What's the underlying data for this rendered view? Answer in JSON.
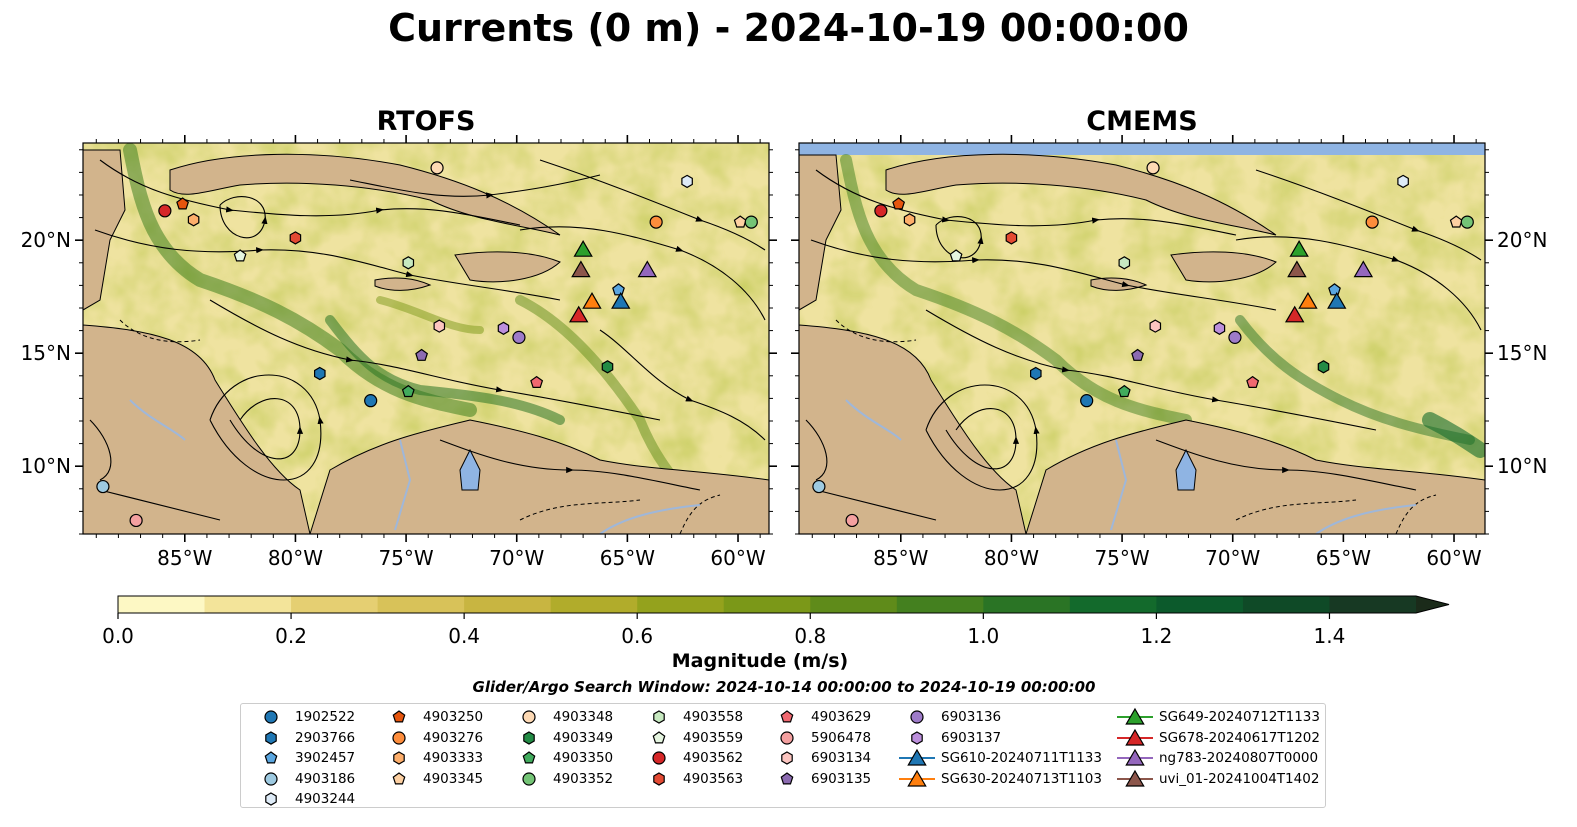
{
  "title": "Currents (0 m) - 2024-10-19 00:00:00",
  "panels": [
    {
      "title": "RTOFS"
    },
    {
      "title": "CMEMS"
    }
  ],
  "axes": {
    "lon_ticks": [
      "85°W",
      "80°W",
      "75°W",
      "70°W",
      "65°W",
      "60°W"
    ],
    "lon_values": [
      -85,
      -80,
      -75,
      -70,
      -65,
      -60
    ],
    "lat_ticks": [
      "10°N",
      "15°N",
      "20°N"
    ],
    "lat_values": [
      10,
      15,
      20
    ],
    "lon_range": [
      -89.6,
      -58.6
    ],
    "lat_range": [
      7.0,
      24.3
    ]
  },
  "colorbar": {
    "label": "Magnitude (m/s)",
    "ticks": [
      "0.0",
      "0.2",
      "0.4",
      "0.6",
      "0.8",
      "1.0",
      "1.2",
      "1.4"
    ],
    "tick_values": [
      0,
      0.2,
      0.4,
      0.6,
      0.8,
      1.0,
      1.2,
      1.4
    ],
    "range": [
      0,
      1.5
    ],
    "extend": "max",
    "colors": [
      "#fdf8c4",
      "#f3e49a",
      "#e5cf72",
      "#d8c259",
      "#c8b541",
      "#b1ac2b",
      "#94a21d",
      "#7b9818",
      "#5f8b1a",
      "#44801f",
      "#2a7425",
      "#136a2c",
      "#0c5a2c",
      "#0f4a27",
      "#173923",
      "#1b2b1a"
    ]
  },
  "search_window": "Glider/Argo Search Window: 2024-10-14 00:00:00 to 2024-10-19 00:00:00",
  "chart_data": {
    "type": "map-streamlines",
    "variable": "Currents (0 m)",
    "units": "m/s",
    "markers": [
      {
        "id": "1902522",
        "shape": "circle",
        "color": "#1f77b4",
        "lon": -76.6,
        "lat": 12.9
      },
      {
        "id": "2903766",
        "shape": "hexagon",
        "color": "#1f77b4",
        "lon": -78.9,
        "lat": 14.1
      },
      {
        "id": "3902457",
        "shape": "pentagon",
        "color": "#5aa6e0",
        "lon": -65.4,
        "lat": 17.8
      },
      {
        "id": "4903186",
        "shape": "circle",
        "color": "#9ecae1",
        "lon": -88.7,
        "lat": 9.1
      },
      {
        "id": "4903244",
        "shape": "hexagon",
        "color": "#deebf7",
        "lon": -62.3,
        "lat": 22.6
      },
      {
        "id": "4903250",
        "shape": "pentagon",
        "color": "#e6550d",
        "lon": -85.1,
        "lat": 21.6
      },
      {
        "id": "4903276",
        "shape": "circle",
        "color": "#fd8d3c",
        "lon": -63.7,
        "lat": 20.8
      },
      {
        "id": "4903333",
        "shape": "hexagon",
        "color": "#fdae6b",
        "lon": -84.6,
        "lat": 20.9
      },
      {
        "id": "4903345",
        "shape": "pentagon",
        "color": "#fdd0a2",
        "lon": -59.9,
        "lat": 20.8
      },
      {
        "id": "4903348",
        "shape": "circle",
        "color": "#fdd9b4",
        "lon": -73.6,
        "lat": 23.2
      },
      {
        "id": "4903349",
        "shape": "hexagon",
        "color": "#238b45",
        "lon": -65.9,
        "lat": 14.4
      },
      {
        "id": "4903350",
        "shape": "pentagon",
        "color": "#41ab5d",
        "lon": -74.9,
        "lat": 13.3
      },
      {
        "id": "4903352",
        "shape": "circle",
        "color": "#74c476",
        "lon": -59.4,
        "lat": 20.8
      },
      {
        "id": "4903558",
        "shape": "hexagon",
        "color": "#c7e9c0",
        "lon": -74.9,
        "lat": 19.0
      },
      {
        "id": "4903559",
        "shape": "pentagon",
        "color": "#e5f5e0",
        "lon": -82.5,
        "lat": 19.3
      },
      {
        "id": "4903562",
        "shape": "circle",
        "color": "#d62728",
        "lon": -85.9,
        "lat": 21.3
      },
      {
        "id": "4903563",
        "shape": "hexagon",
        "color": "#e34a33",
        "lon": -80.0,
        "lat": 20.1
      },
      {
        "id": "4903629",
        "shape": "pentagon",
        "color": "#f06870",
        "lon": -69.1,
        "lat": 13.7
      },
      {
        "id": "5906478",
        "shape": "circle",
        "color": "#f4a0a0",
        "lon": -87.2,
        "lat": 7.6
      },
      {
        "id": "6903134",
        "shape": "hexagon",
        "color": "#fcc5c0",
        "lon": -73.5,
        "lat": 16.2
      },
      {
        "id": "6903135",
        "shape": "pentagon",
        "color": "#8c6bb1",
        "lon": -74.3,
        "lat": 14.9
      },
      {
        "id": "6903136",
        "shape": "circle",
        "color": "#9e7bc9",
        "lon": -69.9,
        "lat": 15.7
      },
      {
        "id": "6903137",
        "shape": "hexagon",
        "color": "#bc8fdc",
        "lon": -70.6,
        "lat": 16.1
      },
      {
        "id": "SG610-20240711T1133",
        "shape": "triangle",
        "color": "#1f77b4",
        "lon": -65.3,
        "lat": 17.3
      },
      {
        "id": "SG630-20240713T1103",
        "shape": "triangle",
        "color": "#ff7f0e",
        "lon": -66.6,
        "lat": 17.3
      },
      {
        "id": "SG649-20240712T1133",
        "shape": "triangle",
        "color": "#2ca02c",
        "lon": -67.0,
        "lat": 19.6
      },
      {
        "id": "SG678-20240617T1202",
        "shape": "triangle",
        "color": "#d62728",
        "lon": -67.2,
        "lat": 16.7
      },
      {
        "id": "ng783-20240807T0000",
        "shape": "triangle",
        "color": "#9467bd",
        "lon": -64.1,
        "lat": 18.7
      },
      {
        "id": "uvi_01-20241004T1402",
        "shape": "triangle",
        "color": "#8c564b",
        "lon": -67.1,
        "lat": 18.7
      }
    ]
  }
}
